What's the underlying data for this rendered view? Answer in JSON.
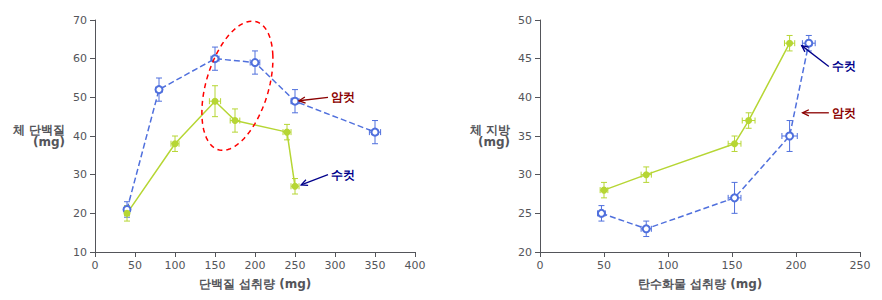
{
  "chart_data": [
    {
      "type": "line",
      "xlabel": "단백질 섭취량 (mg)",
      "ylabel": "체 단백질\n(mg)",
      "xlim": [
        0,
        400
      ],
      "ylim": [
        10,
        70
      ],
      "xticks": [
        0,
        50,
        100,
        150,
        200,
        250,
        300,
        350,
        400
      ],
      "yticks": [
        10,
        20,
        30,
        40,
        50,
        60,
        70
      ],
      "grid": false,
      "series": [
        {
          "marker": "emptyCircle",
          "line_style": "dashed",
          "x": [
            40,
            80,
            150,
            200,
            250,
            350
          ],
          "values": [
            21,
            52,
            60,
            59,
            49,
            41
          ],
          "xerr": [
            3,
            4,
            5,
            6,
            5,
            7
          ],
          "yerr": [
            2,
            3,
            3,
            3,
            3,
            3
          ]
        },
        {
          "marker": "circle",
          "line_style": "solid",
          "x": [
            40,
            100,
            150,
            175,
            240,
            250
          ],
          "values": [
            20,
            38,
            49,
            44,
            41,
            27
          ],
          "xerr": [
            3,
            5,
            7,
            6,
            5,
            5
          ],
          "yerr": [
            2,
            2,
            4,
            3,
            2,
            2
          ]
        }
      ],
      "ellipse": {
        "center": [
          178,
          53
        ],
        "width": 90,
        "height": 30,
        "angle": 10,
        "color": "red"
      },
      "annotations": [
        {
          "text": "암컷",
          "xy": [
            250,
            49
          ],
          "xytext": [
            295,
            50
          ],
          "color": "#8B0000"
        },
        {
          "text": "수컷",
          "xy": [
            253,
            27
          ],
          "xytext": [
            295,
            30
          ],
          "color": "#00008B"
        }
      ]
    },
    {
      "type": "line",
      "xlabel": "탄수화물 섭취량 (mg)",
      "ylabel": "체 지방\n(mg)",
      "xlim": [
        0,
        250
      ],
      "ylim": [
        20,
        50
      ],
      "xticks": [
        0,
        50,
        100,
        150,
        200,
        250
      ],
      "yticks": [
        20,
        25,
        30,
        35,
        40,
        45,
        50
      ],
      "grid": false,
      "series": [
        {
          "marker": "emptyCircle",
          "line_style": "dashed",
          "x": [
            48,
            83,
            152,
            195,
            210
          ],
          "values": [
            25,
            23,
            27,
            35,
            47
          ],
          "xerr": [
            3,
            4,
            5,
            6,
            5
          ],
          "yerr": [
            1,
            1,
            2,
            2,
            1
          ]
        },
        {
          "marker": "circle",
          "line_style": "solid",
          "x": [
            50,
            83,
            152,
            163,
            195
          ],
          "values": [
            28,
            30,
            34,
            37,
            47
          ],
          "xerr": [
            3,
            4,
            5,
            5,
            4
          ],
          "yerr": [
            1,
            1,
            1,
            1,
            1
          ]
        }
      ],
      "annotations": [
        {
          "text": "암컷",
          "xy": [
            202,
            38
          ],
          "xytext": [
            228,
            38
          ],
          "color": "#8B0000"
        },
        {
          "text": "수컷",
          "xy": [
            202,
            47
          ],
          "xytext": [
            228,
            44
          ],
          "color": "#00008B"
        }
      ]
    }
  ]
}
